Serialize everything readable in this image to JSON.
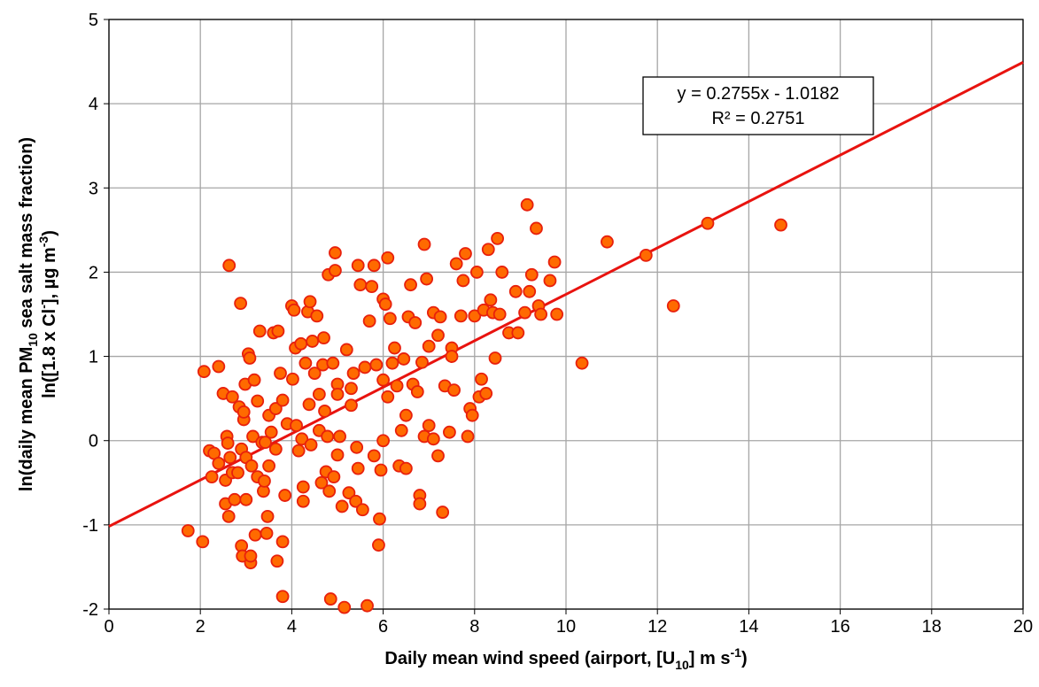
{
  "chart_data": {
    "type": "scatter",
    "x_label": [
      {
        "text": "Daily mean wind speed (airport, [U"
      },
      {
        "text": "10",
        "script": "sub"
      },
      {
        "text": "] m s"
      },
      {
        "text": "-1",
        "script": "super"
      },
      {
        "text": ")"
      }
    ],
    "y_label": [
      [
        {
          "text": "ln(daily mean PM"
        },
        {
          "text": "10",
          "script": "sub"
        },
        {
          "text": "  sea salt mass fraction)"
        }
      ],
      [
        {
          "text": "ln([1.8 x Cl"
        },
        {
          "text": "-",
          "script": "super"
        },
        {
          "text": "], µg m"
        },
        {
          "text": "-3",
          "script": "super"
        },
        {
          "text": ")"
        }
      ]
    ],
    "xlim": [
      0,
      20
    ],
    "xticks": [
      0,
      2,
      4,
      6,
      8,
      10,
      12,
      14,
      16,
      18,
      20
    ],
    "ylim": [
      -2,
      5
    ],
    "yticks": [
      -2,
      -1,
      0,
      1,
      2,
      3,
      4,
      5
    ],
    "grid": true,
    "marker_color": "#ff6a00",
    "marker_edge_color": "#e8200c",
    "x": [
      1.73,
      2.05,
      2.08,
      2.2,
      2.25,
      2.3,
      2.4,
      2.4,
      2.5,
      2.55,
      2.55,
      2.58,
      2.6,
      2.62,
      2.63,
      2.65,
      2.7,
      2.7,
      2.75,
      2.82,
      2.85,
      2.88,
      2.9,
      2.9,
      2.92,
      2.95,
      2.95,
      2.98,
      3.0,
      3.0,
      3.05,
      3.08,
      3.1,
      3.1,
      3.12,
      3.15,
      3.18,
      3.2,
      3.25,
      3.25,
      3.3,
      3.35,
      3.38,
      3.4,
      3.42,
      3.45,
      3.47,
      3.5,
      3.5,
      3.55,
      3.6,
      3.65,
      3.65,
      3.68,
      3.7,
      3.75,
      3.8,
      3.8,
      3.8,
      3.85,
      3.9,
      4.0,
      4.02,
      4.05,
      4.08,
      4.1,
      4.15,
      4.2,
      4.22,
      4.25,
      4.25,
      4.3,
      4.35,
      4.38,
      4.4,
      4.42,
      4.45,
      4.5,
      4.55,
      4.6,
      4.6,
      4.65,
      4.68,
      4.7,
      4.72,
      4.75,
      4.78,
      4.8,
      4.82,
      4.85,
      4.9,
      4.92,
      4.95,
      4.95,
      5.0,
      5.0,
      5.0,
      5.05,
      5.1,
      5.15,
      5.2,
      5.25,
      5.3,
      5.3,
      5.35,
      5.4,
      5.42,
      5.45,
      5.45,
      5.5,
      5.55,
      5.6,
      5.65,
      5.7,
      5.75,
      5.8,
      5.8,
      5.85,
      5.9,
      5.92,
      5.95,
      6.0,
      6.0,
      6.0,
      6.05,
      6.1,
      6.1,
      6.15,
      6.2,
      6.25,
      6.3,
      6.35,
      6.4,
      6.45,
      6.5,
      6.5,
      6.55,
      6.6,
      6.65,
      6.7,
      6.75,
      6.8,
      6.8,
      6.85,
      6.9,
      6.9,
      6.95,
      7.0,
      7.0,
      7.1,
      7.1,
      7.2,
      7.2,
      7.25,
      7.3,
      7.35,
      7.45,
      7.5,
      7.5,
      7.55,
      7.6,
      7.7,
      7.75,
      7.8,
      7.85,
      7.9,
      7.95,
      8.0,
      8.05,
      8.1,
      8.15,
      8.2,
      8.25,
      8.3,
      8.35,
      8.4,
      8.45,
      8.5,
      8.55,
      8.6,
      8.75,
      8.9,
      8.95,
      9.1,
      9.15,
      9.2,
      9.25,
      9.35,
      9.4,
      9.45,
      9.65,
      9.75,
      9.8,
      10.35,
      10.9,
      11.75,
      12.35,
      13.1,
      14.7
    ],
    "y": [
      -1.07,
      -1.2,
      0.82,
      -0.12,
      -0.43,
      -0.15,
      0.88,
      -0.27,
      0.56,
      -0.47,
      -0.75,
      0.05,
      -0.03,
      -0.9,
      2.08,
      -0.2,
      0.52,
      -0.38,
      -0.7,
      -0.38,
      0.4,
      1.63,
      -0.1,
      -1.25,
      -1.37,
      0.25,
      0.34,
      0.67,
      -0.2,
      -0.7,
      1.03,
      0.98,
      -1.45,
      -1.37,
      -0.3,
      0.05,
      0.72,
      -1.12,
      0.47,
      -0.43,
      1.3,
      -0.02,
      -0.6,
      -0.48,
      -0.02,
      -1.1,
      -0.9,
      -0.3,
      0.3,
      0.1,
      1.28,
      0.38,
      -0.1,
      -1.43,
      1.3,
      0.8,
      0.48,
      -1.2,
      -1.85,
      -0.65,
      0.2,
      1.6,
      0.73,
      1.55,
      1.1,
      0.18,
      -0.12,
      1.15,
      0.02,
      -0.55,
      -0.72,
      0.92,
      1.53,
      0.43,
      1.65,
      -0.05,
      1.18,
      0.8,
      1.48,
      0.12,
      0.55,
      -0.5,
      0.9,
      1.22,
      0.35,
      -0.37,
      0.05,
      1.97,
      -0.6,
      -1.88,
      0.92,
      -0.43,
      2.02,
      2.23,
      0.67,
      0.55,
      -0.17,
      0.05,
      -0.78,
      -1.98,
      1.08,
      -0.62,
      0.62,
      0.42,
      0.8,
      -0.72,
      -0.08,
      2.08,
      -0.33,
      1.85,
      -0.82,
      0.87,
      -1.96,
      1.42,
      1.83,
      2.08,
      -0.18,
      0.9,
      -1.24,
      -0.93,
      -0.35,
      1.68,
      0.72,
      0.0,
      1.62,
      2.17,
      0.52,
      1.45,
      0.92,
      1.1,
      0.65,
      -0.3,
      0.12,
      0.97,
      0.3,
      -0.33,
      1.47,
      1.85,
      0.67,
      1.4,
      0.58,
      -0.65,
      -0.75,
      0.93,
      2.33,
      0.05,
      1.92,
      1.12,
      0.18,
      0.02,
      1.52,
      1.25,
      -0.18,
      1.47,
      -0.85,
      0.65,
      0.1,
      1.1,
      1.0,
      0.6,
      2.1,
      1.48,
      1.9,
      2.22,
      0.05,
      0.38,
      0.3,
      1.48,
      2.0,
      0.52,
      0.73,
      1.55,
      0.56,
      2.27,
      1.67,
      1.52,
      0.98,
      2.4,
      1.5,
      2.0,
      1.28,
      1.77,
      1.28,
      1.52,
      2.8,
      1.77,
      1.97,
      2.52,
      1.6,
      1.5,
      1.9,
      2.12,
      1.5,
      0.92,
      2.36,
      2.2,
      1.6,
      2.58,
      2.56
    ],
    "trendline": {
      "slope": 0.2755,
      "intercept": -1.0182,
      "color": "#e8130f",
      "equation": "y = 0.2755x - 1.0182",
      "r_squared": 0.2751,
      "r_squared_label": "R² = 0.2751"
    }
  }
}
